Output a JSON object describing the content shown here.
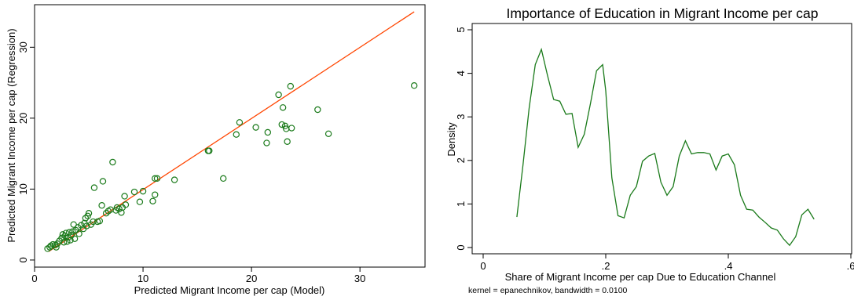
{
  "chart_data": [
    {
      "type": "scatter",
      "title": "",
      "xlabel": "Predicted Migrant Income per cap (Model)",
      "ylabel": "Predicted Migrant Income per cap (Regression)",
      "xlim": [
        0,
        36
      ],
      "ylim": [
        -1,
        36
      ],
      "xticks": [
        0,
        10,
        20,
        30
      ],
      "yticks": [
        0,
        10,
        20,
        30
      ],
      "xtick_labels": [
        "0",
        "10",
        "20",
        "30"
      ],
      "ytick_labels": [
        "0",
        "10",
        "20",
        "30"
      ],
      "grid": false,
      "marker": "hollow-circle",
      "marker_color": "#1a7a1a",
      "line_color": "#ff4500",
      "fit_line": {
        "x": [
          1.3,
          35.0
        ],
        "y": [
          1.2,
          35.0
        ]
      },
      "points": [
        [
          1.2,
          1.6
        ],
        [
          1.4,
          1.8
        ],
        [
          1.5,
          2.0
        ],
        [
          1.7,
          2.2
        ],
        [
          1.9,
          2.1
        ],
        [
          2.0,
          1.8
        ],
        [
          2.1,
          2.3
        ],
        [
          2.3,
          2.7
        ],
        [
          2.5,
          3.1
        ],
        [
          2.6,
          3.6
        ],
        [
          2.7,
          2.5
        ],
        [
          2.8,
          3.4
        ],
        [
          2.9,
          3.8
        ],
        [
          3.0,
          2.6
        ],
        [
          3.1,
          3.2
        ],
        [
          3.2,
          3.9
        ],
        [
          3.3,
          2.8
        ],
        [
          3.4,
          3.5
        ],
        [
          3.5,
          4.0
        ],
        [
          3.6,
          5.0
        ],
        [
          3.7,
          3.0
        ],
        [
          3.8,
          4.2
        ],
        [
          4.0,
          4.6
        ],
        [
          4.1,
          3.7
        ],
        [
          4.3,
          4.9
        ],
        [
          4.5,
          4.4
        ],
        [
          4.6,
          5.2
        ],
        [
          4.7,
          5.9
        ],
        [
          4.8,
          4.8
        ],
        [
          4.9,
          6.2
        ],
        [
          5.0,
          6.6
        ],
        [
          5.2,
          5.0
        ],
        [
          5.4,
          5.4
        ],
        [
          5.5,
          10.2
        ],
        [
          5.8,
          5.4
        ],
        [
          6.0,
          5.5
        ],
        [
          6.2,
          7.7
        ],
        [
          6.3,
          11.1
        ],
        [
          6.6,
          6.6
        ],
        [
          6.8,
          6.9
        ],
        [
          7.0,
          7.1
        ],
        [
          7.2,
          13.8
        ],
        [
          7.5,
          7.0
        ],
        [
          7.6,
          7.4
        ],
        [
          7.8,
          7.2
        ],
        [
          8.0,
          6.7
        ],
        [
          8.1,
          7.4
        ],
        [
          8.3,
          9.0
        ],
        [
          8.4,
          7.8
        ],
        [
          9.2,
          9.6
        ],
        [
          9.7,
          8.2
        ],
        [
          10.0,
          9.7
        ],
        [
          10.9,
          8.3
        ],
        [
          11.1,
          9.2
        ],
        [
          11.1,
          11.5
        ],
        [
          11.3,
          11.5
        ],
        [
          12.9,
          11.3
        ],
        [
          16.0,
          15.4
        ],
        [
          16.1,
          15.4
        ],
        [
          17.4,
          11.5
        ],
        [
          18.6,
          17.7
        ],
        [
          18.9,
          19.4
        ],
        [
          20.4,
          18.7
        ],
        [
          21.4,
          16.5
        ],
        [
          21.5,
          18.0
        ],
        [
          22.5,
          23.3
        ],
        [
          22.8,
          19.1
        ],
        [
          22.9,
          21.5
        ],
        [
          23.1,
          18.9
        ],
        [
          23.2,
          18.5
        ],
        [
          23.3,
          16.7
        ],
        [
          23.6,
          24.5
        ],
        [
          23.7,
          18.6
        ],
        [
          26.1,
          21.2
        ],
        [
          27.1,
          17.8
        ],
        [
          35.0,
          24.6
        ]
      ]
    },
    {
      "type": "line",
      "title": "Importance of Education in Migrant Income per cap",
      "xlabel": "Share of Migrant Income per cap Due to Education Channel",
      "ylabel": "Density",
      "note": "kernel = epanechnikov, bandwidth = 0.0100",
      "xlim": [
        0,
        0.6
      ],
      "ylim": [
        0,
        5
      ],
      "xticks": [
        0,
        0.2,
        0.4,
        0.6
      ],
      "xtick_labels": [
        "0",
        ".2",
        ".4",
        ".6"
      ],
      "yticks": [
        0,
        1,
        2,
        3,
        4,
        5
      ],
      "ytick_labels": [
        "0",
        "1",
        "2",
        "3",
        "4",
        "5"
      ],
      "grid": false,
      "line_color": "#1a7a1a",
      "series": [
        {
          "x": [
            0.055,
            0.065,
            0.075,
            0.085,
            0.095,
            0.105,
            0.115,
            0.125,
            0.135,
            0.145,
            0.155,
            0.165,
            0.175,
            0.185,
            0.195,
            0.2,
            0.21,
            0.22,
            0.23,
            0.24,
            0.25,
            0.26,
            0.27,
            0.28,
            0.29,
            0.3,
            0.31,
            0.32,
            0.33,
            0.34,
            0.35,
            0.36,
            0.37,
            0.38,
            0.39,
            0.4,
            0.41,
            0.42,
            0.43,
            0.44,
            0.45,
            0.46,
            0.47,
            0.48,
            0.49,
            0.5,
            0.51,
            0.52,
            0.53,
            0.54,
            0.55,
            0.56,
            0.57
          ],
          "y": [
            0.7,
            1.9,
            3.2,
            4.2,
            4.55,
            3.95,
            3.4,
            3.36,
            3.06,
            3.08,
            2.3,
            2.6,
            3.3,
            4.06,
            4.2,
            3.6,
            1.6,
            0.73,
            0.68,
            1.2,
            1.4,
            1.98,
            2.1,
            2.16,
            1.5,
            1.2,
            1.4,
            2.1,
            2.45,
            2.15,
            2.18,
            2.18,
            2.15,
            1.78,
            2.1,
            2.15,
            1.9,
            1.2,
            0.88,
            0.86,
            0.7,
            0.58,
            0.45,
            0.4,
            0.2,
            0.05,
            0.25,
            0.75,
            0.88,
            0.65,
            null,
            null,
            null
          ]
        }
      ]
    }
  ]
}
